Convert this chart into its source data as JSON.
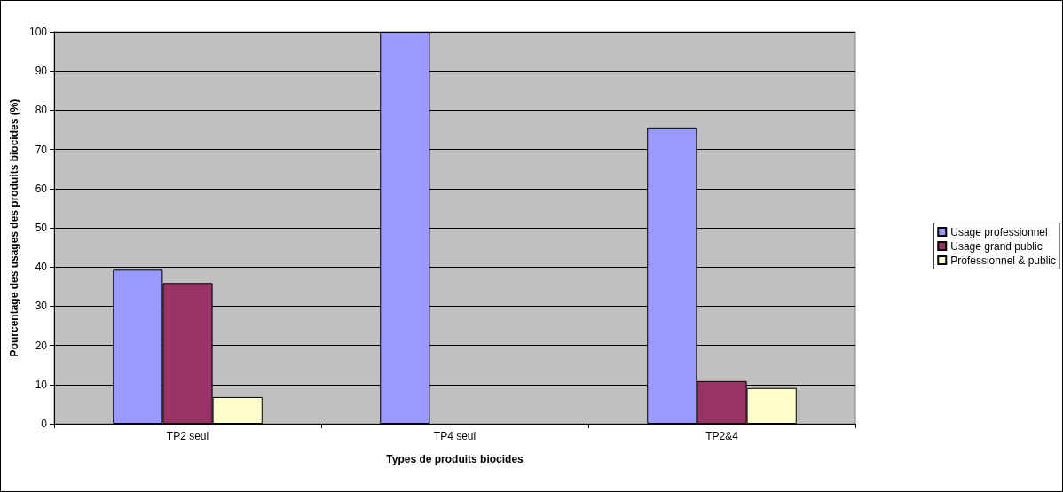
{
  "chart_data": {
    "type": "bar",
    "xlabel": "Types de produits biocides",
    "ylabel": "Pourcentage des usages des produits biocides (%)",
    "categories": [
      "TP2 seul",
      "TP4 seul",
      "TP2&4"
    ],
    "series": [
      {
        "name": "Usage professionnel",
        "color": "#9999ff",
        "values": [
          39.3,
          100,
          75.6
        ]
      },
      {
        "name": "Usage grand public",
        "color": "#993366",
        "values": [
          35.9,
          null,
          10.9
        ]
      },
      {
        "name": "Professionnel & public",
        "color": "#ffffcc",
        "values": [
          6.8,
          null,
          9.1
        ]
      }
    ],
    "ylim": [
      0,
      100
    ],
    "yticks": [
      0,
      10,
      20,
      30,
      40,
      50,
      60,
      70,
      80,
      90,
      100
    ],
    "grid": "y",
    "legend": "right"
  }
}
